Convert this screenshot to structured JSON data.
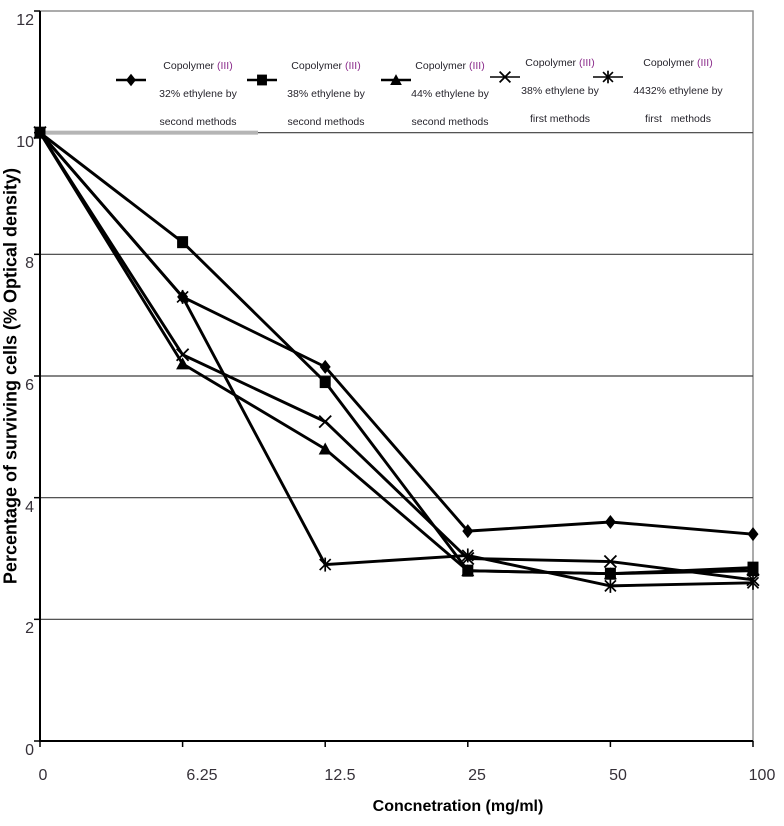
{
  "chart_data": {
    "type": "line",
    "title": "",
    "xlabel": "Concnetration (mg/ml)",
    "ylabel": "Percentage of surviving cells (% Optical density)",
    "x_categories": [
      "0",
      "6.25",
      "12.5",
      "25",
      "50",
      "100"
    ],
    "yticks": [
      "0",
      "2",
      "4",
      "6",
      "8",
      "10",
      "12"
    ],
    "ylim": [
      0,
      12
    ],
    "grid": "horizontal-major",
    "legend_position": "top-inside-horizontal",
    "series": [
      {
        "marker": "diamond",
        "label_main": "Copolymer",
        "label_accent": "(III)",
        "label_line2": "32% ethylene by",
        "label_line3": "second methods",
        "values": [
          10,
          7.3,
          6.15,
          3.45,
          3.6,
          3.4
        ]
      },
      {
        "marker": "square",
        "label_main": "Copolymer",
        "label_accent": "(III)",
        "label_line2": "38% ethylene by",
        "label_line3": "second methods",
        "values": [
          10,
          8.2,
          5.9,
          2.8,
          2.75,
          2.85
        ]
      },
      {
        "marker": "triangle",
        "label_main": "Copolymer",
        "label_accent": "(III)",
        "label_line2": "44% ethylene by",
        "label_line3": "second methods",
        "values": [
          10,
          6.2,
          4.8,
          2.8,
          2.75,
          2.8
        ]
      },
      {
        "marker": "x",
        "label_main": "Copolymer",
        "label_accent": "(III)",
        "label_line2": "38% ethylene by",
        "label_line3": "first methods",
        "values": [
          10,
          6.35,
          5.25,
          3.0,
          2.95,
          2.65
        ]
      },
      {
        "marker": "asterisk",
        "label_main": "Copolymer",
        "label_accent": "(III)",
        "label_line2": "4432% ethylene by",
        "label_line3": "first   methods",
        "values": [
          10,
          7.3,
          2.9,
          3.05,
          2.55,
          2.6
        ]
      }
    ],
    "colors": {
      "series": "#000000",
      "gridline": "#3c3c3c",
      "axis": "#000000",
      "plot_border": "#8f8f8f",
      "tick_text": "#363139",
      "legend_text": "#26242c",
      "legend_accent": "#8a2a8a"
    }
  }
}
